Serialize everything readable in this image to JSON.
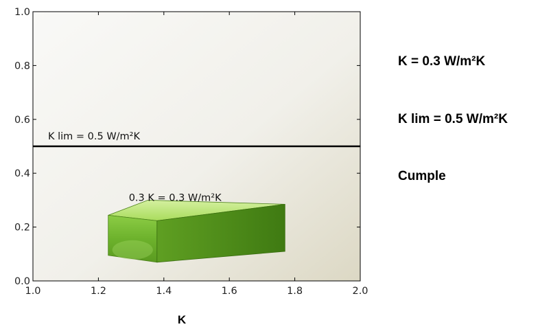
{
  "chart_data": {
    "type": "bar",
    "xlabel": "K",
    "ylabel": "",
    "xlim": [
      1.0,
      2.0
    ],
    "ylim": [
      0.0,
      1.0
    ],
    "x_ticks": [
      "1.0",
      "1.2",
      "1.4",
      "1.6",
      "1.8",
      "2.0"
    ],
    "y_ticks": [
      "0.0",
      "0.2",
      "0.4",
      "0.6",
      "0.8",
      "1.0"
    ],
    "x_tick_values": [
      1.0,
      1.2,
      1.4,
      1.6,
      1.8,
      2.0
    ],
    "y_tick_values": [
      0.0,
      0.2,
      0.4,
      0.6,
      0.8,
      1.0
    ],
    "bar": {
      "x_start": 1.23,
      "x_end": 1.77,
      "value": 0.3,
      "label": "0.3 K = 0.3 W/m²K",
      "color": "#6aa92a"
    },
    "limit_line": {
      "value": 0.5,
      "label": "K lim = 0.5 W/m²K",
      "color": "#000000"
    },
    "grid": false
  },
  "info": {
    "k_value": "K = 0.3 W/m²K",
    "k_lim": "K lim = 0.5 W/m²K",
    "status": "Cumple"
  }
}
